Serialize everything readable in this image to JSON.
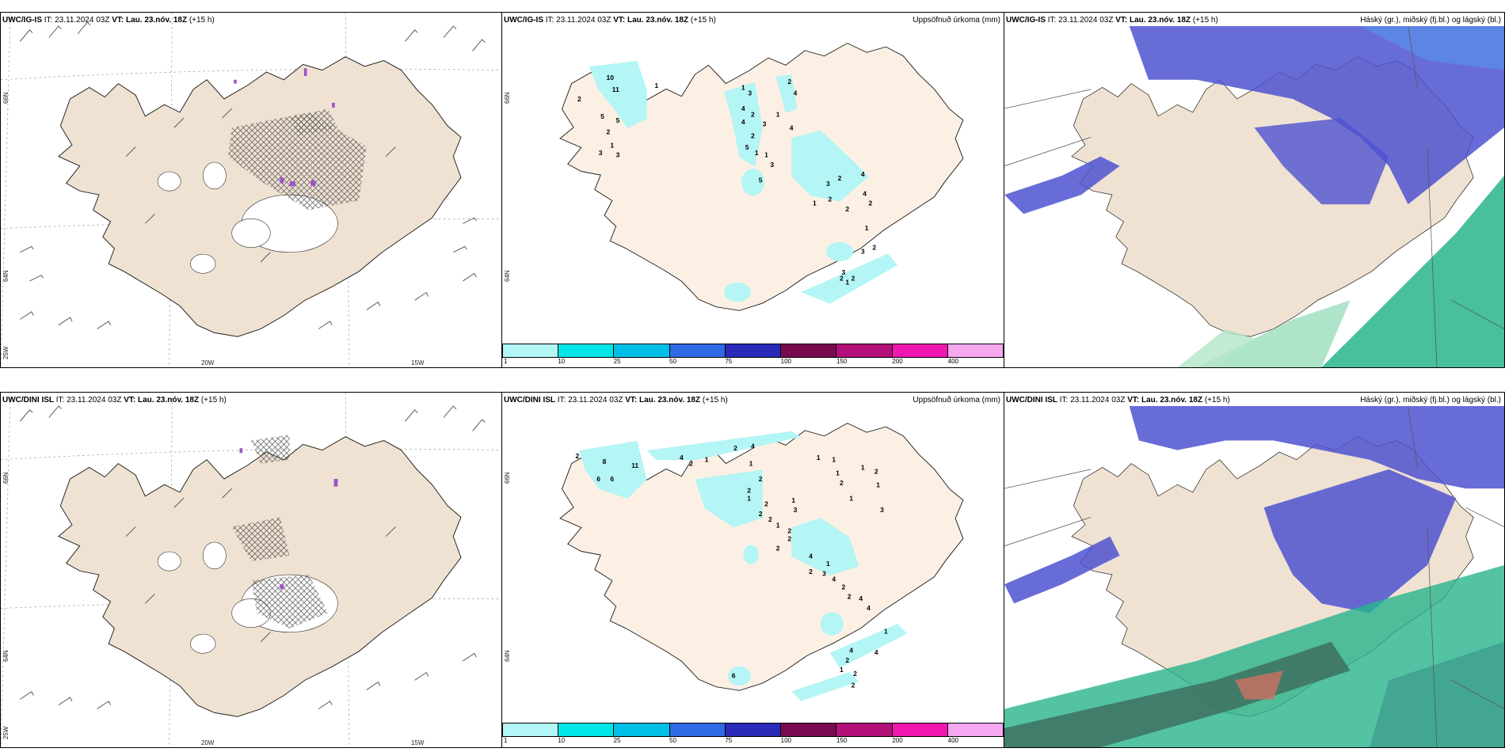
{
  "panels": {
    "top_left": {
      "model": "UWC/IG-IS",
      "it": "IT: 23.11.2024 03Z",
      "vt_label": "VT: Lau. 23.nóv. 18Z",
      "lead": "(+15 h)",
      "right": ""
    },
    "top_mid": {
      "model": "UWC/IG-IS",
      "it": "IT: 23.11.2024 03Z",
      "vt_label": "VT: Lau. 23.nóv. 18Z",
      "lead": "(+15 h)",
      "right": "Uppsöfnuð úrkoma (mm)"
    },
    "top_right": {
      "model": "UWC/IG-IS",
      "it": "IT: 23.11.2024 03Z",
      "vt_label": "VT: Lau. 23.nóv. 18Z",
      "lead": "(+15 h)",
      "right": "Háský (gr.), miðský (fj.bl.) og lágský (bl.)"
    },
    "bot_left": {
      "model": "UWC/DINI ISL",
      "it": "IT: 23.11.2024 03Z",
      "vt_label": "VT: Lau. 23.nóv. 18Z",
      "lead": "(+15 h)",
      "right": ""
    },
    "bot_mid": {
      "model": "UWC/DINI ISL",
      "it": "IT: 23.11.2024 03Z",
      "vt_label": "VT: Lau. 23.nóv. 18Z",
      "lead": "(+15 h)",
      "right": "Uppsöfnuð úrkoma (mm)"
    },
    "bot_right": {
      "model": "UWC/DINI ISL",
      "it": "IT: 23.11.2024 03Z",
      "vt_label": "VT: Lau. 23.nóv. 18Z",
      "lead": "(+15 h)",
      "right": "Háský (gr.), miðský (fj.bl.) og lágský (bl.)"
    }
  },
  "axis_ticks": {
    "lat66": "66N",
    "lat64": "64N",
    "lon25": "25W",
    "lon20": "20W",
    "lon15": "15W",
    "mid_lat66": "66N",
    "mid_lat64": "64N"
  },
  "colorbar": {
    "labels": [
      "1",
      "10",
      "25",
      "50",
      "75",
      "100",
      "150",
      "200",
      "400"
    ],
    "colors": [
      "#b4f5f5",
      "#00e6e6",
      "#00bfe6",
      "#2f6ae6",
      "#2a2ab8",
      "#7a0a50",
      "#b4107a",
      "#f016b0",
      "#f5a8f0"
    ]
  },
  "precip_top": [
    "10",
    "11",
    "2",
    "1",
    "5",
    "5",
    "2",
    "1",
    "3",
    "3",
    "1",
    "3",
    "4",
    "2",
    "4",
    "3",
    "2",
    "5",
    "1",
    "1",
    "3",
    "2",
    "4",
    "1",
    "4",
    "5",
    "3",
    "2",
    "1",
    "2",
    "2",
    "4",
    "4",
    "2",
    "1",
    "2",
    "3",
    "2",
    "1",
    "2",
    "3"
  ],
  "precip_bot": [
    "2",
    "8",
    "11",
    "6",
    "6",
    "4",
    "2",
    "1",
    "2",
    "1",
    "4",
    "2",
    "2",
    "1",
    "2",
    "2",
    "2",
    "1",
    "2",
    "1",
    "3",
    "2",
    "2",
    "1",
    "1",
    "1",
    "2",
    "1",
    "1",
    "2",
    "1",
    "3",
    "4",
    "1",
    "2",
    "3",
    "4",
    "2",
    "2",
    "4",
    "4",
    "4",
    "2",
    "1",
    "2",
    "4",
    "2",
    "6",
    "1"
  ],
  "colors": {
    "land": "#f0e2d2",
    "precip_land": "#fcf0e4",
    "cyan": "#b4f5f5",
    "purple": "#9b55c8",
    "blue_mid": "#4d52d0",
    "blue_light": "#5a8ce6",
    "green": "#28b48c",
    "teal": "#3c9c8c"
  }
}
